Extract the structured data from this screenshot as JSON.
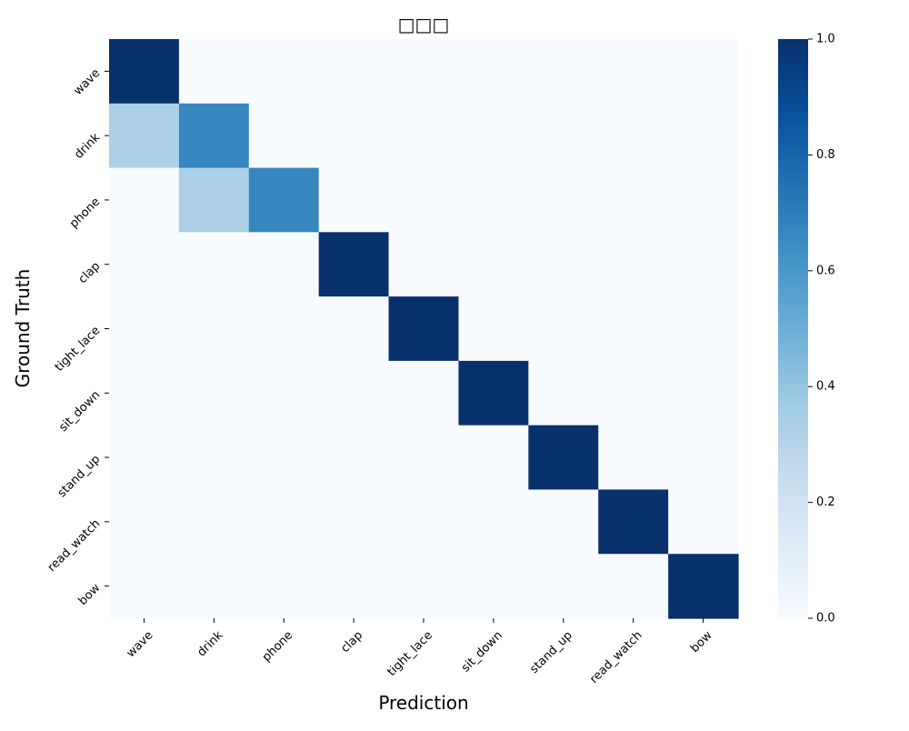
{
  "chart_data": {
    "type": "heatmap",
    "title": "□□□",
    "xlabel": "Prediction",
    "ylabel": "Ground Truth",
    "x_categories": [
      "wave",
      "drink",
      "phone",
      "clap",
      "tight_lace",
      "sit_down",
      "stand_up",
      "read_watch",
      "bow"
    ],
    "y_categories": [
      "wave",
      "drink",
      "phone",
      "clap",
      "tight_lace",
      "sit_down",
      "stand_up",
      "read_watch",
      "bow"
    ],
    "matrix": [
      [
        1.0,
        0,
        0,
        0,
        0,
        0,
        0,
        0,
        0
      ],
      [
        0.33,
        0.67,
        0,
        0,
        0,
        0,
        0,
        0,
        0
      ],
      [
        0,
        0.33,
        0.67,
        0,
        0,
        0,
        0,
        0,
        0
      ],
      [
        0,
        0,
        0,
        1.0,
        0,
        0,
        0,
        0,
        0
      ],
      [
        0,
        0,
        0,
        0,
        1.0,
        0,
        0,
        0,
        0
      ],
      [
        0,
        0,
        0,
        0,
        0,
        1.0,
        0,
        0,
        0
      ],
      [
        0,
        0,
        0,
        0,
        0,
        0,
        1.0,
        0,
        0
      ],
      [
        0,
        0,
        0,
        0,
        0,
        0,
        0,
        1.0,
        0
      ],
      [
        0,
        0,
        0,
        0,
        0,
        0,
        0,
        0,
        1.0
      ]
    ],
    "colormap": "Blues",
    "color_stops": [
      "#f7fbff",
      "#deebf7",
      "#c6dbef",
      "#9ecae1",
      "#6baed6",
      "#4292c6",
      "#2171b5",
      "#08519c",
      "#08306b"
    ],
    "value_range": [
      0,
      1
    ],
    "colorbar_ticks": [
      "0.0",
      "0.2",
      "0.4",
      "0.6",
      "0.8",
      "1.0"
    ],
    "colorbar_tick_values": [
      0,
      0.2,
      0.4,
      0.6,
      0.8,
      1.0
    ],
    "grid": false
  }
}
